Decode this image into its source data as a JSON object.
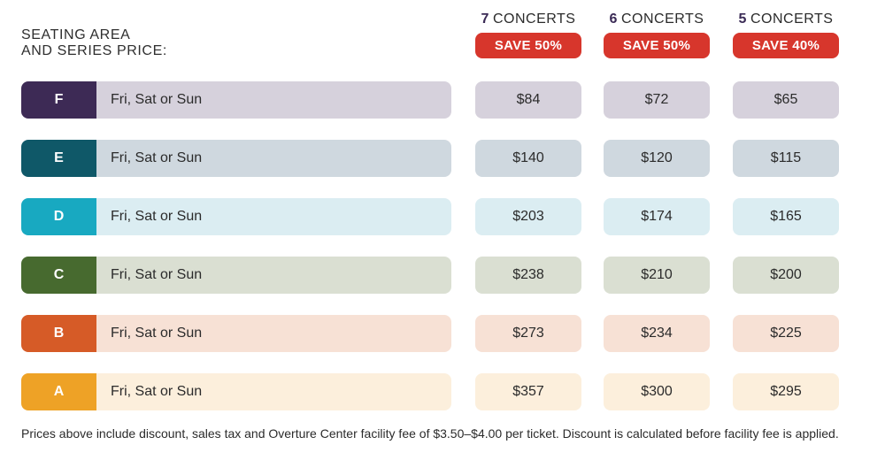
{
  "header": {
    "label_line1": "SEATING AREA",
    "label_line2": "AND SERIES PRICE:"
  },
  "columns": [
    {
      "count": "7",
      "unit": "CONCERTS",
      "badge": "SAVE 50%"
    },
    {
      "count": "6",
      "unit": "CONCERTS",
      "badge": "SAVE 50%"
    },
    {
      "count": "5",
      "unit": "CONCERTS",
      "badge": "SAVE 40%"
    }
  ],
  "rows": [
    {
      "letter": "F",
      "days": "Fri, Sat or Sun",
      "prices": [
        "$84",
        "$72",
        "$65"
      ],
      "accent": "#3d2a55",
      "tint": "#d6d1dc"
    },
    {
      "letter": "E",
      "days": "Fri, Sat or Sun",
      "prices": [
        "$140",
        "$120",
        "$115"
      ],
      "accent": "#0f5868",
      "tint": "#cfd8df"
    },
    {
      "letter": "D",
      "days": "Fri, Sat or Sun",
      "prices": [
        "$203",
        "$174",
        "$165"
      ],
      "accent": "#18a9c1",
      "tint": "#dbedf2"
    },
    {
      "letter": "C",
      "days": "Fri, Sat or Sun",
      "prices": [
        "$238",
        "$210",
        "$200"
      ],
      "accent": "#476a2f",
      "tint": "#dadfd2"
    },
    {
      "letter": "B",
      "days": "Fri, Sat or Sun",
      "prices": [
        "$273",
        "$234",
        "$225"
      ],
      "accent": "#d65b27",
      "tint": "#f7e1d5"
    },
    {
      "letter": "A",
      "days": "Fri, Sat or Sun",
      "prices": [
        "$357",
        "$300",
        "$295"
      ],
      "accent": "#eea226",
      "tint": "#fcefdc"
    }
  ],
  "footnote": "Prices above include discount, sales tax and Overture Center facility fee of $3.50–$4.00 per ticket. Discount is calculated before facility fee is applied."
}
